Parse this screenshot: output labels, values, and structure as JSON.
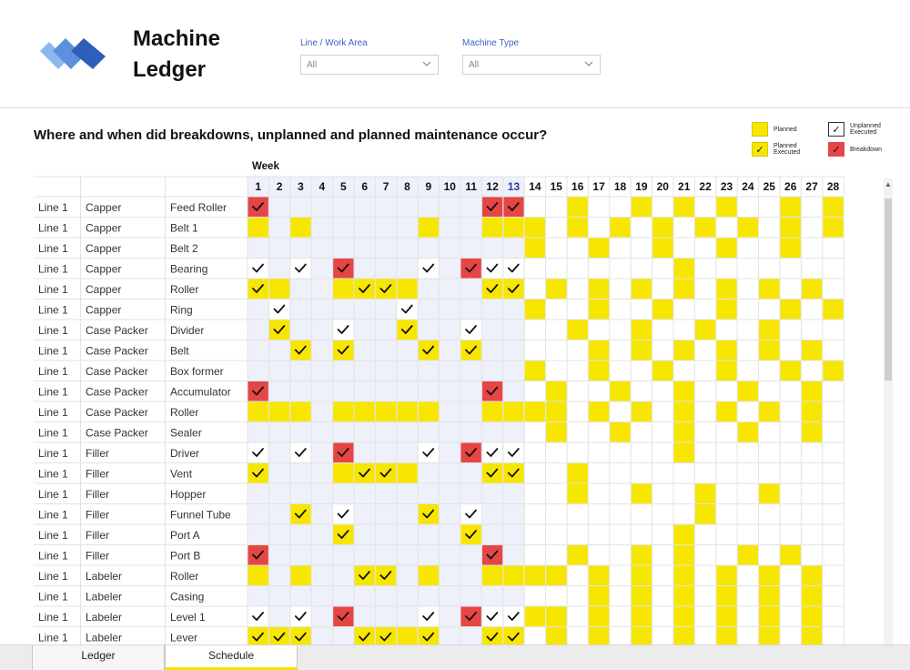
{
  "app": {
    "title_line1": "Machine",
    "title_line2": "Ledger",
    "logo_colors": [
      "#2f5fb8",
      "#5c8fdd",
      "#8db8ee"
    ]
  },
  "filters": [
    {
      "label": "Line / Work Area",
      "value": "All"
    },
    {
      "label": "Machine Type",
      "value": "All"
    }
  ],
  "question": "Where and when did breakdowns, unplanned and planned maintenance occur?",
  "legend": [
    {
      "key": "P",
      "line1": "Planned",
      "line2": "",
      "color": "#f7e600"
    },
    {
      "key": "U",
      "line1": "Unplanned",
      "line2": "Executed",
      "color": "#ffffff"
    },
    {
      "key": "E",
      "line1": "Planned",
      "line2": "Executed",
      "color": "#f7e600"
    },
    {
      "key": "B",
      "line1": "Breakdown",
      "line2": "",
      "color": "#e64545"
    }
  ],
  "colors": {
    "planned": "#f7e600",
    "breakdown": "#e64545",
    "past_shade": "#eef0fa",
    "current_week": "#1f3f9c"
  },
  "week_label": "Week",
  "current_week": 13,
  "weeks": [
    1,
    2,
    3,
    4,
    5,
    6,
    7,
    8,
    9,
    10,
    11,
    12,
    13,
    14,
    15,
    16,
    17,
    18,
    19,
    20,
    21,
    22,
    23,
    24,
    25,
    26,
    27,
    28
  ],
  "rows": [
    {
      "line": "Line 1",
      "type": "Capper",
      "part": "Feed Roller",
      "cells": "B..........BB..P..P.P.P..P.P"
    },
    {
      "line": "Line 1",
      "type": "Capper",
      "part": "Belt 1",
      "cells": "P.P.....P..PPP.P.P.P.P.P.P.P"
    },
    {
      "line": "Line 1",
      "type": "Capper",
      "part": "Belt 2",
      "cells": ".............P..P..P..P..P.."
    },
    {
      "line": "Line 1",
      "type": "Capper",
      "part": "Bearing",
      "cells": "U.U.B...U.BUU.......P......."
    },
    {
      "line": "Line 1",
      "type": "Capper",
      "part": "Roller",
      "cells": "EP..PEEP...EE.P.P.P.P.P.P.P."
    },
    {
      "line": "Line 1",
      "type": "Capper",
      "part": "Ring",
      "cells": ".U.....U.....P..P..P..P..P.P"
    },
    {
      "line": "Line 1",
      "type": "Case Packer",
      "part": "Divider",
      "cells": ".E..U..E..U....P..P..P..P..."
    },
    {
      "line": "Line 1",
      "type": "Case Packer",
      "part": "Belt",
      "cells": "..E.E...E.E.....P.P.P.P.P.P."
    },
    {
      "line": "Line 1",
      "type": "Case Packer",
      "part": "Box former",
      "cells": ".............P..P..P..P..P.P"
    },
    {
      "line": "Line 1",
      "type": "Case Packer",
      "part": "Accumulator",
      "cells": "B..........B..P..P..P..P..P."
    },
    {
      "line": "Line 1",
      "type": "Case Packer",
      "part": "Roller",
      "cells": "PPP.PPPPP..PPPP.P.P.P.P.P.P."
    },
    {
      "line": "Line 1",
      "type": "Case Packer",
      "part": "Sealer",
      "cells": "..............P..P..P..P..P."
    },
    {
      "line": "Line 1",
      "type": "Filler",
      "part": "Driver",
      "cells": "U.U.B...U.BUU.......P......."
    },
    {
      "line": "Line 1",
      "type": "Filler",
      "part": "Vent",
      "cells": "E...PEEP...EE..P............"
    },
    {
      "line": "Line 1",
      "type": "Filler",
      "part": "Hopper",
      "cells": "...............P..P..P..P..."
    },
    {
      "line": "Line 1",
      "type": "Filler",
      "part": "Funnel Tube",
      "cells": "..E.U...E.U..........P......"
    },
    {
      "line": "Line 1",
      "type": "Filler",
      "part": "Port A",
      "cells": "....E.....E.........P......."
    },
    {
      "line": "Line 1",
      "type": "Filler",
      "part": "Port B",
      "cells": "B..........B...P..P.P..P.P.."
    },
    {
      "line": "Line 1",
      "type": "Labeler",
      "part": "Roller",
      "cells": "P.P..EE.P..PPPP.P.P.P.P.P.P."
    },
    {
      "line": "Line 1",
      "type": "Labeler",
      "part": "Casing",
      "cells": "................P.P.P.P.P.P.."
    },
    {
      "line": "Line 1",
      "type": "Labeler",
      "part": "Level 1",
      "cells": "U.U.B...U.BUUPP.P.P.P.P.P.P."
    },
    {
      "line": "Line 1",
      "type": "Labeler",
      "part": "Lever",
      "cells": "EEE..EEPE..EE.P.P.P.P.P.P.P."
    }
  ],
  "tabs": [
    {
      "label": "Ledger",
      "active": false
    },
    {
      "label": "Schedule",
      "active": true
    }
  ]
}
